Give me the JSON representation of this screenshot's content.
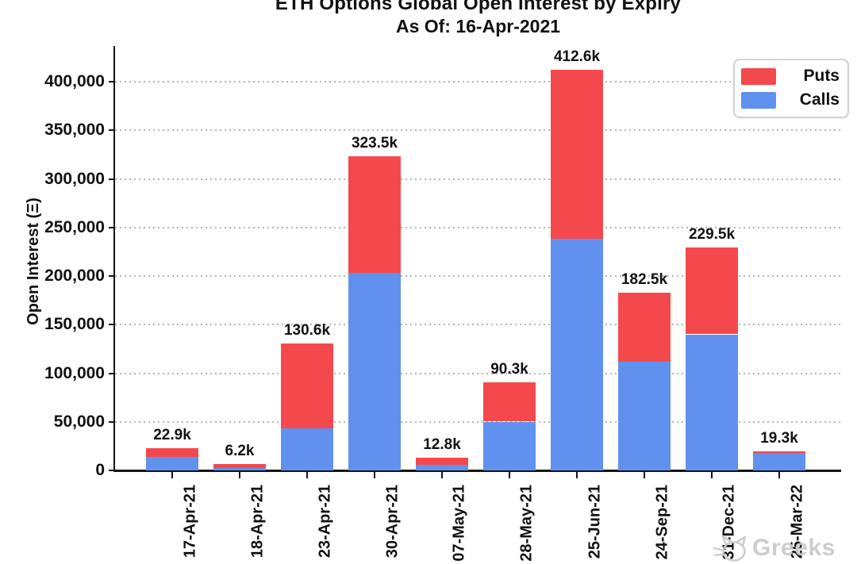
{
  "title": {
    "line1": "ETH Options Global Open Interest by Expiry",
    "line2": "As Of: 16-Apr-2021"
  },
  "y_axis": {
    "label": "Open Interest (Ξ)"
  },
  "legend": {
    "items": [
      {
        "label": "Puts",
        "color": "#F4494C"
      },
      {
        "label": "Calls",
        "color": "#6191EE"
      }
    ]
  },
  "watermark": {
    "text": "Greeks",
    "icon": "cat-logo-icon",
    "color": "#cbcbcb"
  },
  "chart_data": {
    "type": "bar",
    "stacked": true,
    "title": "ETH Options Global Open Interest by Expiry",
    "subtitle": "As Of: 16-Apr-2021",
    "xlabel": "",
    "ylabel": "Open Interest (Ξ)",
    "categories": [
      "17-Apr-21",
      "18-Apr-21",
      "23-Apr-21",
      "30-Apr-21",
      "07-May-21",
      "28-May-21",
      "25-Jun-21",
      "24-Sep-21",
      "31-Dec-21",
      "25-Mar-22"
    ],
    "series": [
      {
        "name": "Calls",
        "color": "#6191EE",
        "values": [
          13800,
          2200,
          43600,
          203000,
          6000,
          50200,
          238000,
          112000,
          140000,
          17600
        ]
      },
      {
        "name": "Puts",
        "color": "#F4494C",
        "values": [
          9100,
          4000,
          87000,
          120500,
          6800,
          40100,
          174600,
          70500,
          89500,
          1700
        ]
      }
    ],
    "totals": [
      22900,
      6200,
      130600,
      323500,
      12800,
      90300,
      412600,
      182500,
      229500,
      19300
    ],
    "totals_labels": [
      "22.9k",
      "6.2k",
      "130.6k",
      "323.5k",
      "12.8k",
      "90.3k",
      "412.6k",
      "182.5k",
      "229.5k",
      "19.3k"
    ],
    "ylim": [
      0,
      440000
    ],
    "ytick_step": 50000,
    "ytick_labels": [
      "0",
      "50,000",
      "100,000",
      "150,000",
      "200,000",
      "250,000",
      "300,000",
      "350,000",
      "400,000"
    ],
    "grid": "horizontal-dotted",
    "legend_position": "upper-right",
    "grid_color": "#b6b6b6",
    "axis_color": "#141414"
  }
}
